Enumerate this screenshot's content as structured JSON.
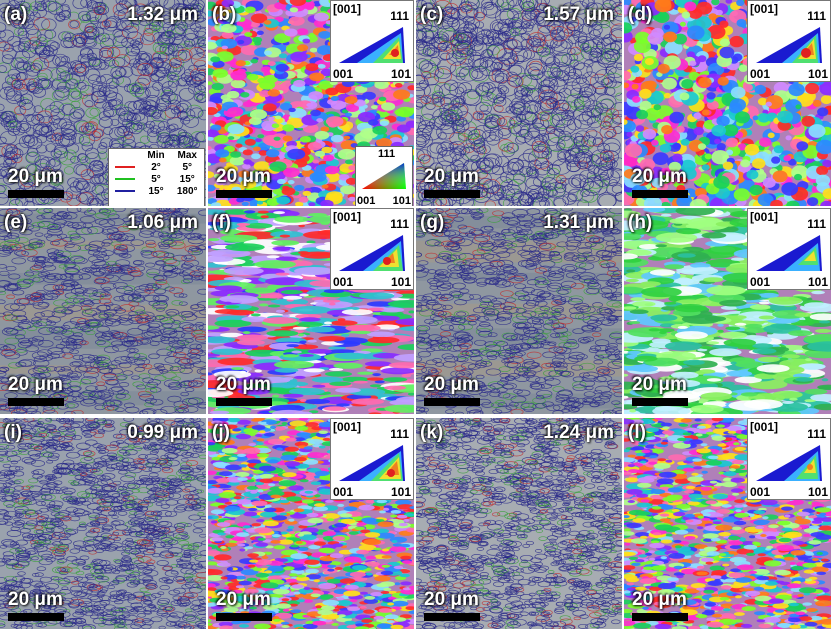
{
  "panels": [
    {
      "id": "a",
      "label": "(a)",
      "size": "1.32 μm",
      "scale": "20 μm"
    },
    {
      "id": "b",
      "label": "(b)",
      "scale": "20 μm"
    },
    {
      "id": "c",
      "label": "(c)",
      "size": "1.57 μm",
      "scale": "20 μm"
    },
    {
      "id": "d",
      "label": "(d)",
      "scale": "20 μm"
    },
    {
      "id": "e",
      "label": "(e)",
      "size": "1.06 μm",
      "scale": "20 μm"
    },
    {
      "id": "f",
      "label": "(f)",
      "scale": "20 μm"
    },
    {
      "id": "g",
      "label": "(g)",
      "size": "1.31 μm",
      "scale": "20 μm"
    },
    {
      "id": "h",
      "label": "(h)",
      "scale": "20 μm"
    },
    {
      "id": "i",
      "label": "(i)",
      "size": "0.99 μm",
      "scale": "20 μm"
    },
    {
      "id": "j",
      "label": "(j)",
      "scale": "20 μm"
    },
    {
      "id": "k",
      "label": "(k)",
      "size": "1.24 μm",
      "scale": "20 μm"
    },
    {
      "id": "l",
      "label": "(l)",
      "scale": "20 μm"
    }
  ],
  "ipf": {
    "dir_top": "[001]",
    "corner_111": "111",
    "corner_001": "001",
    "corner_101": "101"
  },
  "legend": {
    "head_min": "Min",
    "head_max": "Max",
    "rows": [
      {
        "color": "#e02020",
        "min": "2°",
        "max": "5°"
      },
      {
        "color": "#20c020",
        "min": "5°",
        "max": "15°"
      },
      {
        "color": "#2020a0",
        "min": "15°",
        "max": "180°"
      }
    ]
  },
  "colorkey": {
    "top": "111",
    "left": "001",
    "right": "101"
  }
}
